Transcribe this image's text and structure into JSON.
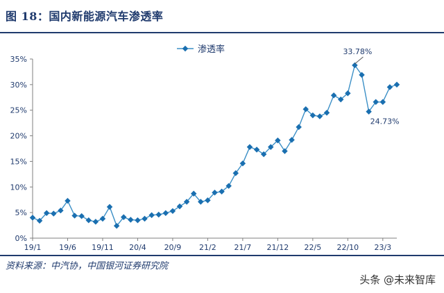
{
  "figure": {
    "title": "图 18：国内新能源汽车渗透率",
    "source": "资料来源：中汽协，中国银河证券研究院",
    "watermark": "头条 @未来智库"
  },
  "colors": {
    "line": "#3b8fc6",
    "marker": "#1a6fb0",
    "text": "#1f3a6d",
    "axis": "#7f7f7f"
  },
  "chart_data": {
    "type": "line",
    "title": "",
    "xlabel": "",
    "ylabel": "",
    "ylim": [
      0,
      35
    ],
    "ytick_labels": [
      "0%",
      "5%",
      "10%",
      "15%",
      "20%",
      "25%",
      "30%",
      "35%"
    ],
    "xtick_labels": [
      {
        "label": "19/1",
        "index": 0
      },
      {
        "label": "19/6",
        "index": 5
      },
      {
        "label": "19/11",
        "index": 10
      },
      {
        "label": "20/4",
        "index": 15
      },
      {
        "label": "20/9",
        "index": 20
      },
      {
        "label": "21/2",
        "index": 25
      },
      {
        "label": "21/7",
        "index": 30
      },
      {
        "label": "21/12",
        "index": 35
      },
      {
        "label": "22/5",
        "index": 40
      },
      {
        "label": "22/10",
        "index": 45
      },
      {
        "label": "23/3",
        "index": 50
      }
    ],
    "series": [
      {
        "name": "渗透率",
        "values": [
          4.0,
          3.4,
          4.9,
          4.8,
          5.4,
          7.3,
          4.4,
          4.3,
          3.5,
          3.2,
          3.8,
          6.1,
          2.4,
          4.1,
          3.6,
          3.5,
          3.8,
          4.5,
          4.6,
          4.9,
          5.3,
          6.2,
          7.1,
          8.7,
          7.1,
          7.4,
          8.9,
          9.1,
          10.2,
          12.7,
          14.6,
          17.8,
          17.3,
          16.4,
          17.8,
          19.1,
          17.0,
          19.2,
          21.7,
          25.2,
          24.0,
          23.8,
          24.5,
          27.9,
          27.1,
          28.3,
          33.78,
          31.9,
          24.73,
          26.6,
          26.6,
          29.5,
          30.0
        ]
      }
    ],
    "annotations": [
      {
        "text": "33.78%",
        "index": 46
      },
      {
        "text": "24.73%",
        "index": 48
      }
    ],
    "legend": {
      "label": "渗透率",
      "position": "top-center"
    },
    "grid": false
  }
}
